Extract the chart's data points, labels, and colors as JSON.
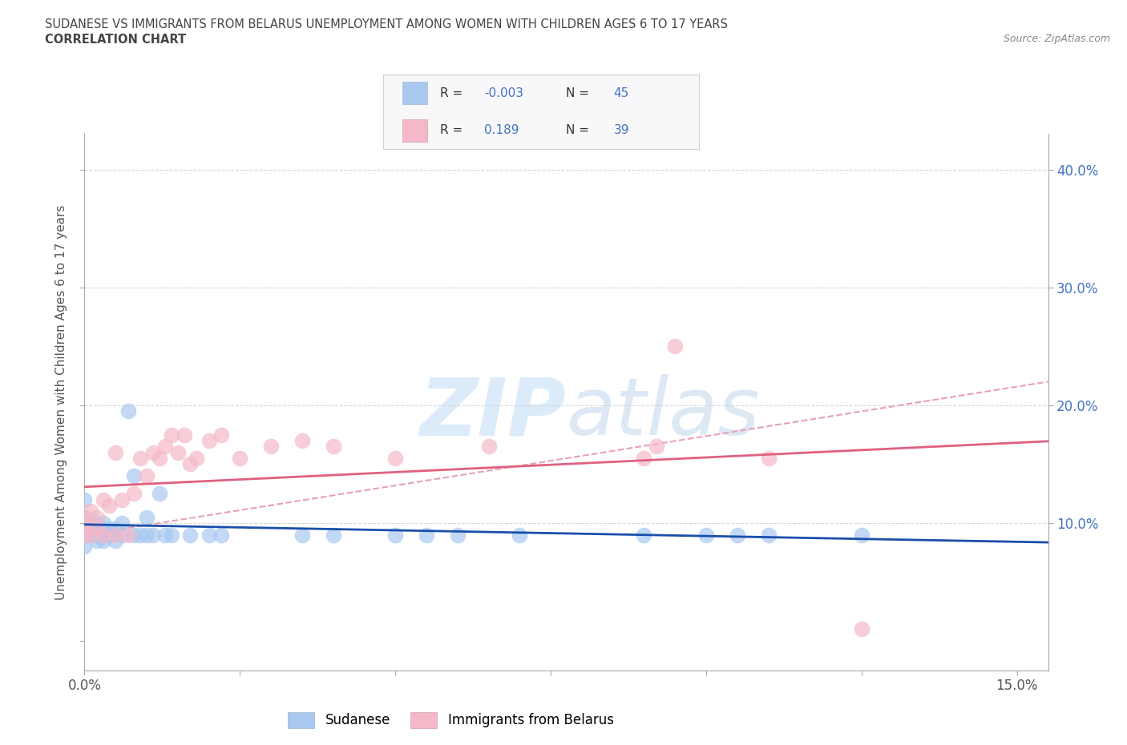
{
  "title_line1": "SUDANESE VS IMMIGRANTS FROM BELARUS UNEMPLOYMENT AMONG WOMEN WITH CHILDREN AGES 6 TO 17 YEARS",
  "title_line2": "CORRELATION CHART",
  "source_text": "Source: ZipAtlas.com",
  "ylabel": "Unemployment Among Women with Children Ages 6 to 17 years",
  "xlim": [
    0.0,
    0.155
  ],
  "ylim": [
    -0.025,
    0.43
  ],
  "blue_color": "#a8c8f0",
  "pink_color": "#f5b8c8",
  "blue_line_color": "#1a4faa",
  "pink_line_color": "#e06080",
  "pink_dash_color": "#e8a0b8",
  "watermark_color": "#dce8f5",
  "R_blue": -0.003,
  "N_blue": 45,
  "R_pink": 0.189,
  "N_pink": 39,
  "sudanese_x": [
    0.0,
    0.0,
    0.0,
    0.0,
    0.0,
    0.0,
    0.001,
    0.001,
    0.001,
    0.002,
    0.002,
    0.002,
    0.003,
    0.003,
    0.003,
    0.004,
    0.004,
    0.005,
    0.005,
    0.006,
    0.006,
    0.007,
    0.008,
    0.008,
    0.009,
    0.01,
    0.01,
    0.011,
    0.012,
    0.013,
    0.014,
    0.017,
    0.02,
    0.022,
    0.035,
    0.04,
    0.05,
    0.055,
    0.06,
    0.07,
    0.09,
    0.1,
    0.105,
    0.11,
    0.125
  ],
  "sudanese_y": [
    0.08,
    0.09,
    0.095,
    0.1,
    0.105,
    0.12,
    0.09,
    0.095,
    0.1,
    0.085,
    0.09,
    0.1,
    0.085,
    0.09,
    0.1,
    0.09,
    0.095,
    0.085,
    0.095,
    0.09,
    0.1,
    0.195,
    0.09,
    0.14,
    0.09,
    0.09,
    0.105,
    0.09,
    0.125,
    0.09,
    0.09,
    0.09,
    0.09,
    0.09,
    0.09,
    0.09,
    0.09,
    0.09,
    0.09,
    0.09,
    0.09,
    0.09,
    0.09,
    0.09,
    0.09
  ],
  "belarus_x": [
    0.0,
    0.0,
    0.0,
    0.0,
    0.001,
    0.001,
    0.002,
    0.002,
    0.003,
    0.003,
    0.004,
    0.005,
    0.005,
    0.006,
    0.007,
    0.008,
    0.009,
    0.01,
    0.011,
    0.012,
    0.013,
    0.014,
    0.015,
    0.016,
    0.017,
    0.018,
    0.02,
    0.022,
    0.025,
    0.03,
    0.035,
    0.04,
    0.05,
    0.065,
    0.09,
    0.092,
    0.095,
    0.11,
    0.125
  ],
  "belarus_y": [
    0.09,
    0.095,
    0.1,
    0.105,
    0.09,
    0.11,
    0.095,
    0.105,
    0.09,
    0.12,
    0.115,
    0.09,
    0.16,
    0.12,
    0.09,
    0.125,
    0.155,
    0.14,
    0.16,
    0.155,
    0.165,
    0.175,
    0.16,
    0.175,
    0.15,
    0.155,
    0.17,
    0.175,
    0.155,
    0.165,
    0.17,
    0.165,
    0.155,
    0.165,
    0.155,
    0.165,
    0.25,
    0.155,
    0.01
  ],
  "background_color": "#ffffff",
  "grid_color": "#d8d8d8"
}
